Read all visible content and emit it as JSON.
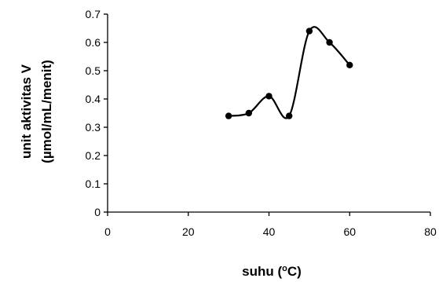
{
  "chart_data": {
    "type": "line",
    "title": "",
    "xlabel_main": "suhu (",
    "xlabel_sup": "o",
    "xlabel_end": "C)",
    "ylabel_line1": "unit aktivitas V",
    "ylabel_line2": "(µmol/mL/menit)",
    "xlim": [
      0,
      80
    ],
    "ylim": [
      0,
      0.7
    ],
    "x_ticks": [
      0,
      20,
      40,
      60,
      80
    ],
    "x_tick_labels": [
      "0",
      "20",
      "40",
      "60",
      "80"
    ],
    "y_ticks": [
      0,
      0.1,
      0.2,
      0.3,
      0.4,
      0.5,
      0.6,
      0.7
    ],
    "y_tick_labels": [
      "0",
      "0.1",
      "0.2",
      "0.3",
      "0.4",
      "0.5",
      "0.6",
      "0.7"
    ],
    "grid": false,
    "smooth": true,
    "series": [
      {
        "x": [
          30,
          35,
          40,
          45,
          50,
          55,
          60
        ],
        "y": [
          0.34,
          0.35,
          0.41,
          0.34,
          0.64,
          0.6,
          0.52
        ],
        "color": "#000000"
      }
    ]
  }
}
